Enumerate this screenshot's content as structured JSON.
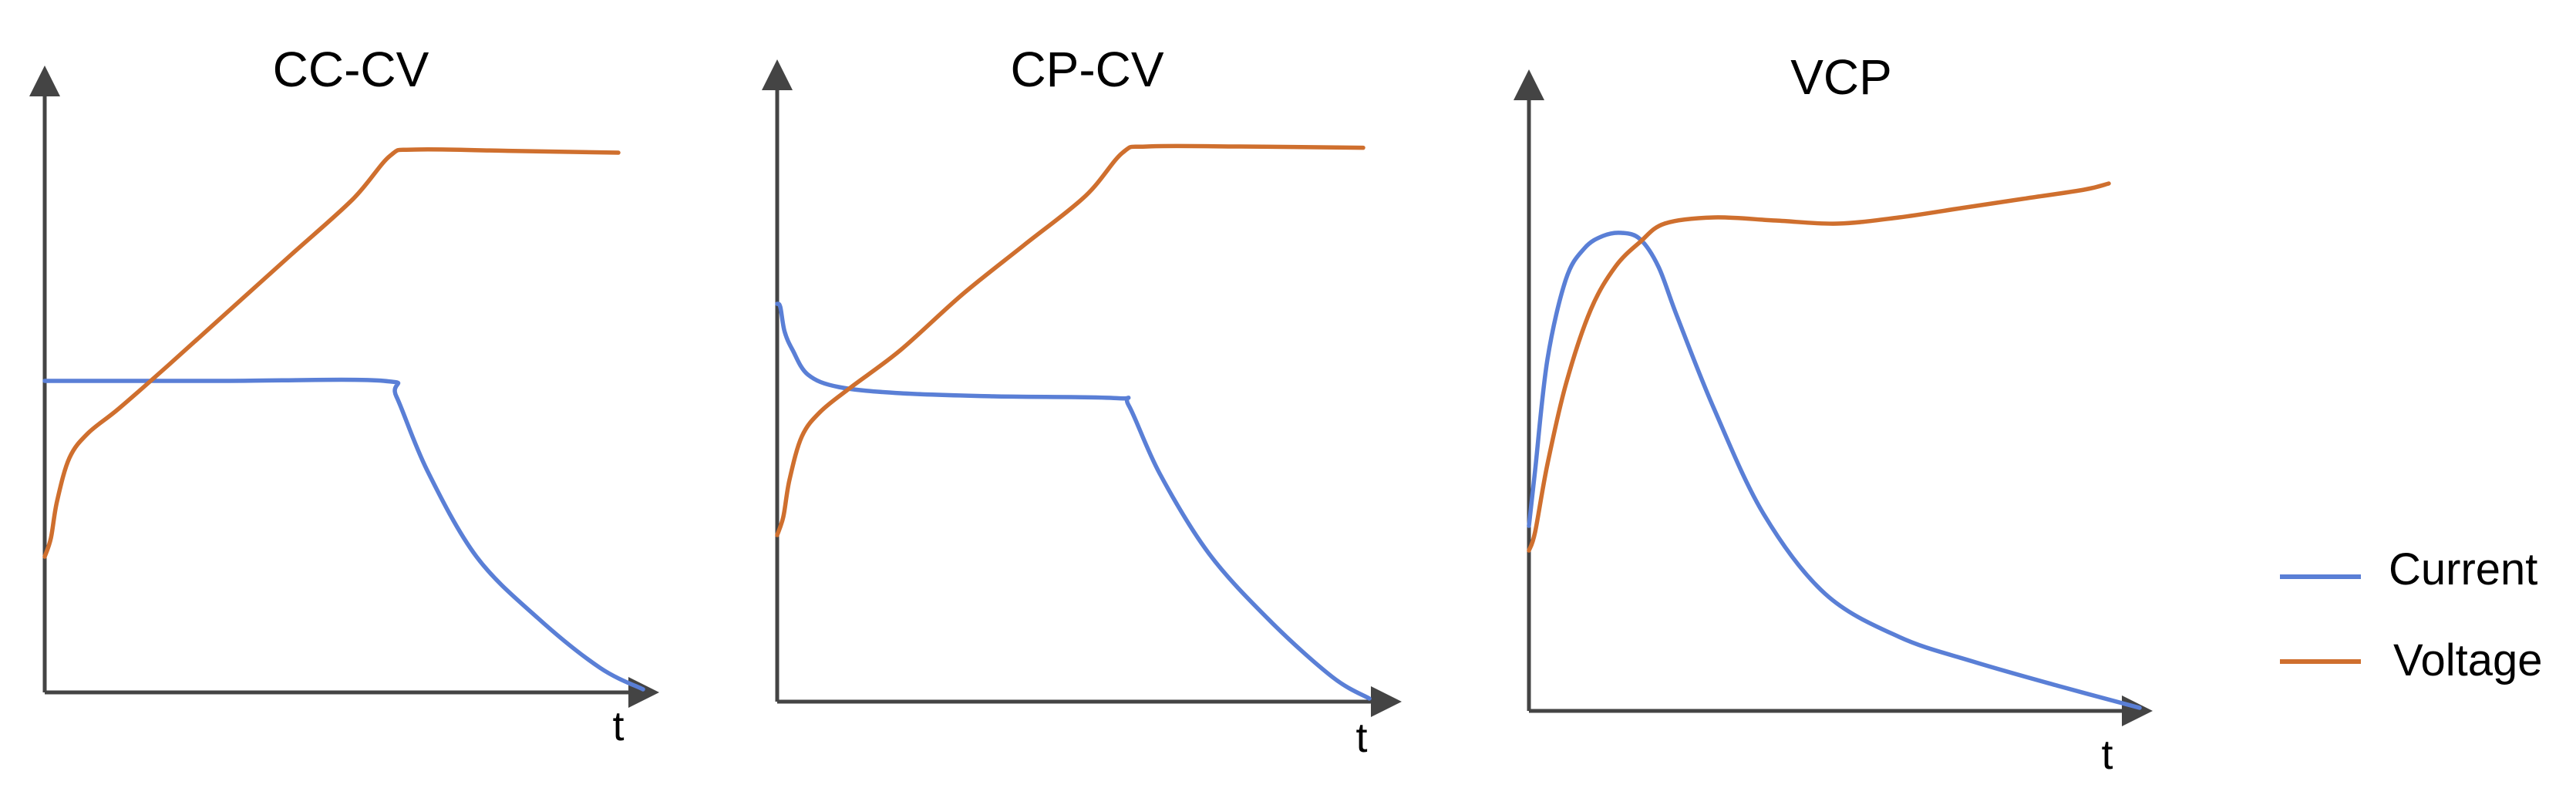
{
  "chart_data": [
    {
      "type": "line",
      "title": "CC-CV",
      "xlabel": "t",
      "ylabel": "",
      "xlim": [
        0,
        1
      ],
      "ylim": [
        0,
        1
      ],
      "grid": false,
      "series": [
        {
          "name": "Current",
          "x": [
            0,
            0.1,
            0.3,
            0.55,
            0.57,
            0.62,
            0.7,
            0.8,
            0.9,
            0.97
          ],
          "y": [
            0.505,
            0.505,
            0.505,
            0.505,
            0.48,
            0.36,
            0.22,
            0.12,
            0.04,
            0.005
          ]
        },
        {
          "name": "Voltage",
          "x": [
            0,
            0.01,
            0.02,
            0.04,
            0.07,
            0.12,
            0.2,
            0.3,
            0.4,
            0.5,
            0.56,
            0.6,
            0.75,
            0.93
          ],
          "y": [
            0.22,
            0.25,
            0.31,
            0.38,
            0.42,
            0.46,
            0.53,
            0.62,
            0.71,
            0.8,
            0.87,
            0.88,
            0.878,
            0.875
          ]
        }
      ]
    },
    {
      "type": "line",
      "title": "CP-CV",
      "xlabel": "t",
      "ylabel": "",
      "xlim": [
        0,
        1
      ],
      "ylim": [
        0,
        1
      ],
      "grid": false,
      "series": [
        {
          "name": "Current",
          "x": [
            0,
            0.005,
            0.012,
            0.025,
            0.05,
            0.1,
            0.2,
            0.35,
            0.55,
            0.57,
            0.62,
            0.7,
            0.8,
            0.9,
            0.96
          ],
          "y": [
            0.645,
            0.64,
            0.6,
            0.57,
            0.53,
            0.51,
            0.5,
            0.495,
            0.492,
            0.48,
            0.37,
            0.24,
            0.13,
            0.04,
            0.005
          ]
        },
        {
          "name": "Voltage",
          "x": [
            0,
            0.01,
            0.02,
            0.04,
            0.07,
            0.12,
            0.2,
            0.3,
            0.4,
            0.5,
            0.56,
            0.6,
            0.75,
            0.95
          ],
          "y": [
            0.27,
            0.3,
            0.36,
            0.43,
            0.47,
            0.51,
            0.57,
            0.66,
            0.74,
            0.82,
            0.89,
            0.9,
            0.9,
            0.898
          ]
        }
      ]
    },
    {
      "type": "line",
      "title": "VCP",
      "xlabel": "t",
      "ylabel": "",
      "xlim": [
        0,
        1
      ],
      "ylim": [
        0,
        1
      ],
      "grid": false,
      "series": [
        {
          "name": "Current",
          "x": [
            0,
            0.01,
            0.03,
            0.06,
            0.09,
            0.12,
            0.15,
            0.18,
            0.21,
            0.24,
            0.3,
            0.38,
            0.48,
            0.6,
            0.72,
            0.86,
            0.99
          ],
          "y": [
            0.3,
            0.39,
            0.57,
            0.7,
            0.75,
            0.77,
            0.775,
            0.765,
            0.72,
            0.64,
            0.49,
            0.32,
            0.19,
            0.12,
            0.08,
            0.04,
            0.005
          ]
        },
        {
          "name": "Voltage",
          "x": [
            0,
            0.01,
            0.03,
            0.06,
            0.1,
            0.14,
            0.18,
            0.22,
            0.3,
            0.4,
            0.5,
            0.6,
            0.7,
            0.8,
            0.9,
            0.94
          ],
          "y": [
            0.26,
            0.29,
            0.4,
            0.53,
            0.65,
            0.72,
            0.76,
            0.79,
            0.8,
            0.795,
            0.79,
            0.8,
            0.815,
            0.83,
            0.845,
            0.855
          ]
        }
      ]
    }
  ],
  "legend": {
    "position": "right",
    "items": [
      {
        "label": "Current",
        "color": "#5a7fd6"
      },
      {
        "label": "Voltage",
        "color": "#cf6f2e"
      }
    ]
  },
  "colors": {
    "current": "#5a7fd6",
    "voltage": "#cf6f2e",
    "axis": "#444444"
  }
}
